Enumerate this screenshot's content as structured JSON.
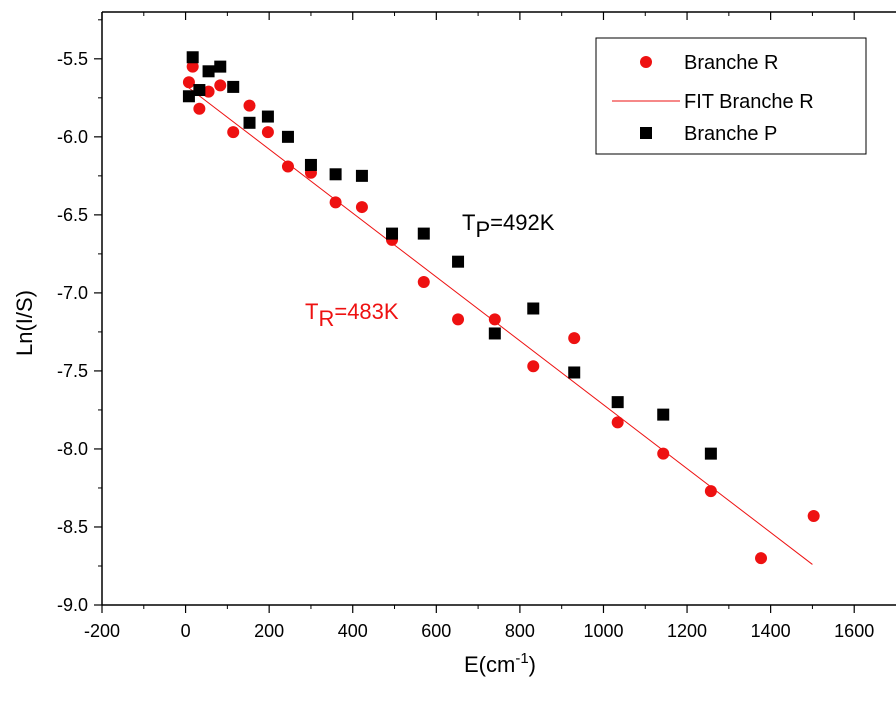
{
  "chart_data": {
    "type": "scatter",
    "title": "",
    "xlabel_main": "E(cm",
    "xlabel_sup": "-1",
    "xlabel_tail": ")",
    "ylabel": "Ln(I/S)",
    "xlim": [
      -200,
      1700
    ],
    "ylim": [
      -9.0,
      -5.2
    ],
    "x_ticks": [
      -200,
      0,
      200,
      400,
      600,
      800,
      1000,
      1200,
      1400,
      1600
    ],
    "y_ticks": [
      -9.0,
      -8.5,
      -8.0,
      -7.5,
      -7.0,
      -6.5,
      -6.0,
      -5.5
    ],
    "x_tick_labels": [
      "-200",
      "0",
      "200",
      "400",
      "600",
      "800",
      "1000",
      "1200",
      "1400",
      "1600"
    ],
    "y_tick_labels": [
      "-9.0",
      "-8.5",
      "-8.0",
      "-7.5",
      "-7.0",
      "-6.5",
      "-6.0",
      "-5.5"
    ],
    "grid": false,
    "legend_position": "top-right",
    "series": [
      {
        "name": "Branche R",
        "marker": "circle",
        "color": "#ee1111",
        "points": [
          [
            8,
            -5.65
          ],
          [
            17,
            -5.55
          ],
          [
            33,
            -5.82
          ],
          [
            55,
            -5.71
          ],
          [
            83,
            -5.67
          ],
          [
            114,
            -5.97
          ],
          [
            153,
            -5.8
          ],
          [
            197,
            -5.97
          ],
          [
            245,
            -6.19
          ],
          [
            300,
            -6.23
          ],
          [
            359,
            -6.42
          ],
          [
            422,
            -6.45
          ],
          [
            494,
            -6.66
          ],
          [
            570,
            -6.93
          ],
          [
            652,
            -7.17
          ],
          [
            740,
            -7.17
          ],
          [
            832,
            -7.47
          ],
          [
            930,
            -7.29
          ],
          [
            1034,
            -7.83
          ],
          [
            1143,
            -8.03
          ],
          [
            1257,
            -8.27
          ],
          [
            1377,
            -8.7
          ],
          [
            1503,
            -8.43
          ]
        ]
      },
      {
        "name": "FIT Branche R",
        "type": "line",
        "color": "#ee1111",
        "points": [
          [
            0,
            -5.67
          ],
          [
            1500,
            -8.74
          ]
        ]
      },
      {
        "name": "Branche P",
        "marker": "square",
        "color": "#000000",
        "points": [
          [
            8,
            -5.74
          ],
          [
            17,
            -5.49
          ],
          [
            33,
            -5.7
          ],
          [
            55,
            -5.58
          ],
          [
            83,
            -5.55
          ],
          [
            114,
            -5.68
          ],
          [
            153,
            -5.91
          ],
          [
            197,
            -5.87
          ],
          [
            245,
            -6.0
          ],
          [
            300,
            -6.18
          ],
          [
            359,
            -6.24
          ],
          [
            422,
            -6.25
          ],
          [
            494,
            -6.62
          ],
          [
            570,
            -6.62
          ],
          [
            652,
            -6.8
          ],
          [
            740,
            -7.26
          ],
          [
            832,
            -7.1
          ],
          [
            930,
            -7.51
          ],
          [
            1034,
            -7.7
          ],
          [
            1143,
            -7.78
          ],
          [
            1257,
            -8.03
          ]
        ]
      }
    ],
    "annotations": [
      {
        "id": "tp",
        "main": "T",
        "sub": "P",
        "tail": "=492K",
        "color": "#000000",
        "x": 660,
        "y": -6.6
      },
      {
        "id": "tr",
        "main": "T",
        "sub": "R",
        "tail": "=483K",
        "color": "#ee1111",
        "x": 270,
        "y": -7.25
      }
    ]
  }
}
